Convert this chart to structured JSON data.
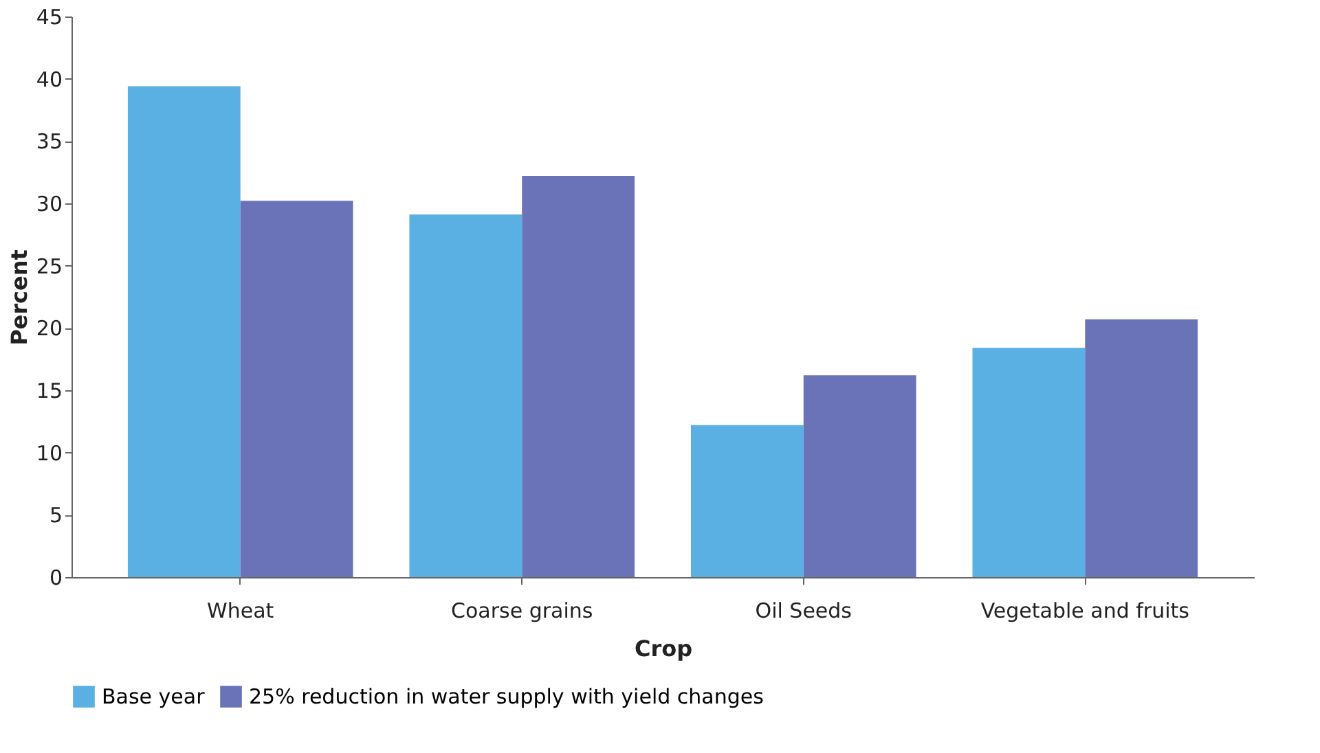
{
  "chart_data": {
    "type": "bar",
    "xlabel": "Crop",
    "ylabel": "Percent",
    "categories": [
      "Wheat",
      "Coarse grains",
      "Oil Seeds",
      "Vegetable and fruits"
    ],
    "series": [
      {
        "name": "Base year",
        "color": "#5aafe3",
        "values": [
          39.4,
          29.1,
          12.2,
          18.4
        ]
      },
      {
        "name": "25% reduction in water supply with yield changes",
        "color": "#6a73b8",
        "values": [
          30.2,
          32.2,
          16.2,
          20.7
        ]
      }
    ],
    "ylim": [
      0,
      45
    ],
    "yticks": [
      0,
      5,
      10,
      15,
      20,
      25,
      30,
      35,
      40,
      45
    ],
    "grid": false,
    "legend": "bottom"
  }
}
